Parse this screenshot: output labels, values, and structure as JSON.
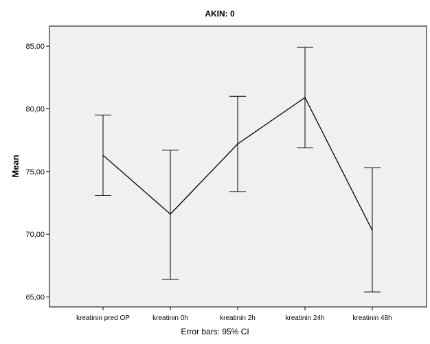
{
  "chart_data": {
    "type": "line",
    "title": "AKIN: 0",
    "xlabel": "",
    "ylabel": "Mean",
    "footer": "Error bars: 95% CI",
    "categories": [
      "kreatinin pred OP",
      "kreatinin 0h",
      "kreatinin 2h",
      "kreatinin 24h",
      "kreatinin 48h"
    ],
    "series": [
      {
        "values": [
          76.3,
          71.6,
          77.2,
          80.9,
          70.3
        ],
        "ci_lower": [
          73.1,
          66.4,
          73.4,
          76.9,
          65.4
        ],
        "ci_upper": [
          79.5,
          76.7,
          81.0,
          84.9,
          75.3
        ]
      }
    ],
    "ylim": [
      64.2,
      86.6
    ],
    "yticks": [
      65,
      70,
      75,
      80,
      85
    ],
    "ytick_labels": [
      "65,00",
      "70,00",
      "75,00",
      "80,00",
      "85,00"
    ],
    "grid": false,
    "plot_background": "#f0f0f0",
    "line_color": "#000000"
  }
}
